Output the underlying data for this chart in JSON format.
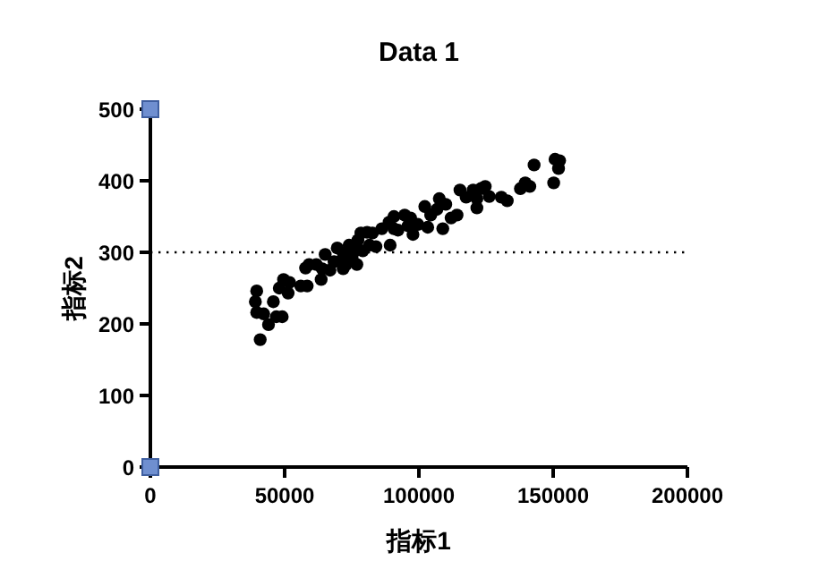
{
  "chart_data": {
    "type": "scatter",
    "title": "Data 1",
    "xlabel": "指标1",
    "ylabel": "指标2",
    "xlim": [
      0,
      200000
    ],
    "ylim": [
      0,
      500
    ],
    "xticks": [
      0,
      50000,
      100000,
      150000,
      200000
    ],
    "yticks": [
      0,
      100,
      200,
      300,
      400,
      500
    ],
    "grid": false,
    "marker": "circle",
    "ref_lines": [
      {
        "axis": "y",
        "value": 300,
        "line_style": "dotted",
        "color": "#000000"
      }
    ],
    "series": [
      {
        "color": "#000000",
        "x": [
          39600,
          39100,
          39600,
          42200,
          40900,
          45800,
          44000,
          46900,
          49100,
          48000,
          49600,
          51300,
          51800,
          56000,
          58400,
          57800,
          59100,
          61800,
          63600,
          65100,
          66900,
          68400,
          69600,
          71800,
          72900,
          74000,
          75100,
          76200,
          77300,
          78400,
          76900,
          80700,
          79100,
          84000,
          86200,
          88900,
          89300,
          90700,
          92200,
          94700,
          96000,
          97800,
          96900,
          102200,
          103300,
          104400,
          106700,
          107600,
          108900,
          110000,
          112000,
          114200,
          115300,
          117600,
          120200,
          121600,
          123100,
          124700,
          121600,
          130700,
          132900,
          137800,
          139600,
          141300,
          142900,
          150200,
          150700,
          152400,
          152000,
          81600,
          71800,
          82700,
          99600,
          90700,
          70700,
          64000,
          126200
        ],
        "values": [
          246,
          231,
          216,
          214,
          178,
          231,
          199,
          210,
          210,
          250,
          262,
          243,
          258,
          253,
          253,
          278,
          283,
          283,
          262,
          297,
          275,
          287,
          306,
          299,
          283,
          310,
          292,
          302,
          317,
          327,
          283,
          328,
          302,
          308,
          333,
          342,
          310,
          350,
          331,
          352,
          337,
          325,
          348,
          364,
          335,
          352,
          360,
          375,
          333,
          367,
          348,
          352,
          387,
          377,
          387,
          362,
          389,
          392,
          375,
          377,
          372,
          389,
          397,
          392,
          422,
          397,
          430,
          428,
          417,
          310,
          277,
          327,
          339,
          333,
          287,
          277,
          378
        ]
      }
    ]
  }
}
